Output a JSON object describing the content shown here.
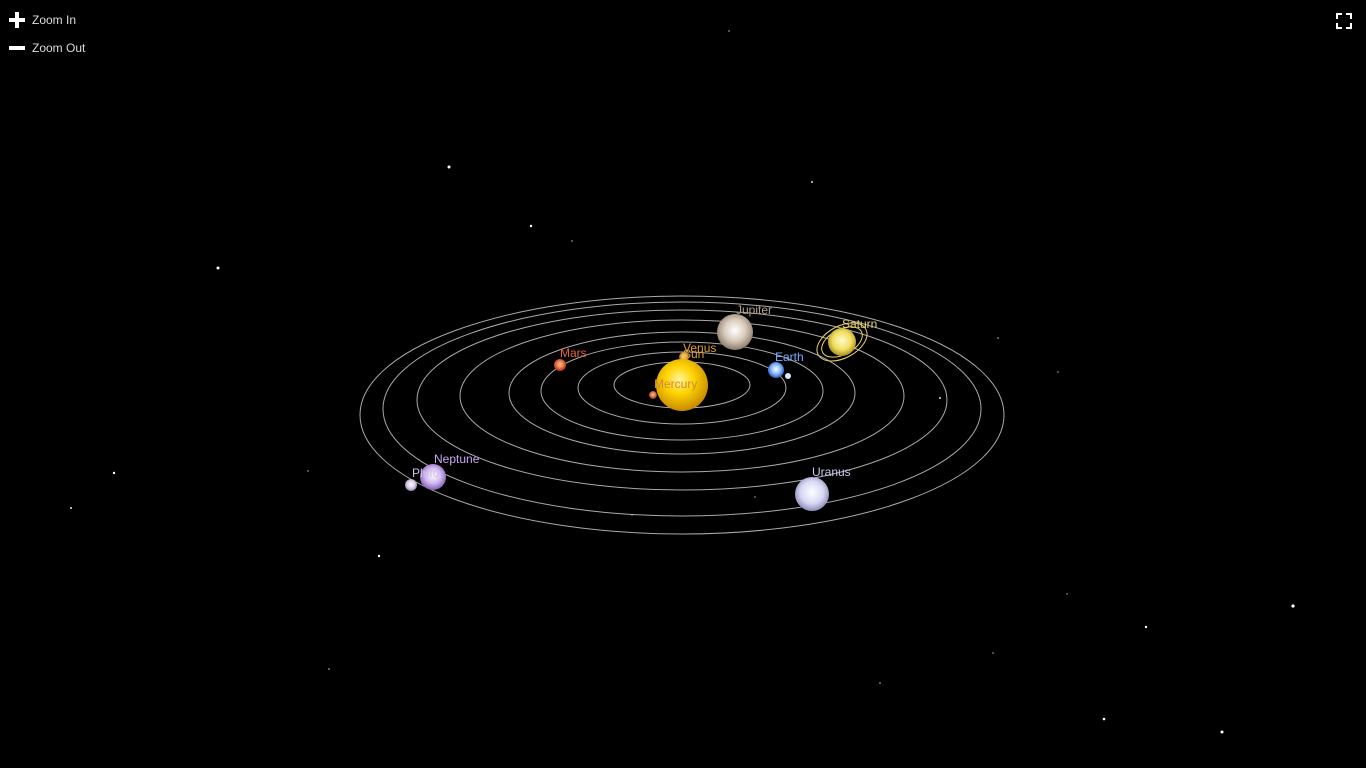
{
  "controls": {
    "zoom_in_label": "Zoom In",
    "zoom_out_label": "Zoom Out",
    "zoom_in_icon": "plus-icon",
    "zoom_out_icon": "minus-icon",
    "fullscreen_icon": "fullscreen-icon"
  },
  "colors": {
    "background": "#000000",
    "orbit": "#bdbdbd",
    "sun": "#f5c000",
    "mercury_label": "#d08a3a",
    "venus_label": "#e0a030",
    "sun_label": "#e0a030",
    "mars_label": "#e8643c",
    "earth_label": "#7aa8ff",
    "jupiter_label": "#b0a090",
    "saturn_label": "#e8d070",
    "uranus_label": "#c8c8ee",
    "neptune_label": "#c8a8f0",
    "pluto_label": "#d0c0e8"
  },
  "bodies": [
    {
      "name": "Sun",
      "label": "Sun"
    },
    {
      "name": "Mercury",
      "label": "Mercury"
    },
    {
      "name": "Venus",
      "label": "Venus"
    },
    {
      "name": "Earth",
      "label": "Earth"
    },
    {
      "name": "Mars",
      "label": "Mars"
    },
    {
      "name": "Jupiter",
      "label": "Jupiter"
    },
    {
      "name": "Saturn",
      "label": "Saturn"
    },
    {
      "name": "Uranus",
      "label": "Uranus"
    },
    {
      "name": "Neptune",
      "label": "Neptune"
    },
    {
      "name": "Pluto",
      "label": "Pluto"
    }
  ]
}
